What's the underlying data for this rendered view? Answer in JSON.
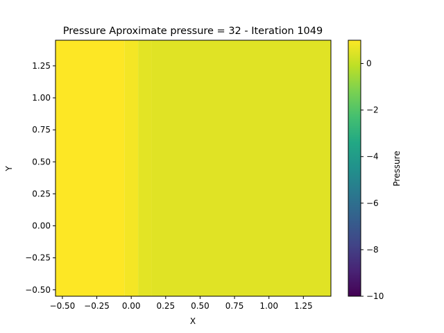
{
  "chart_data": {
    "type": "heatmap",
    "title": "Pressure Aproximate pressure = 32 - Iteration 1049",
    "xlabel": "X",
    "ylabel": "Y",
    "xlim": [
      -0.55,
      1.45
    ],
    "ylim": [
      -0.55,
      1.45
    ],
    "x_ticks": [
      -0.5,
      -0.25,
      0.0,
      0.25,
      0.5,
      0.75,
      1.0,
      1.25
    ],
    "y_ticks": [
      -0.5,
      -0.25,
      0.0,
      0.25,
      0.5,
      0.75,
      1.0,
      1.25
    ],
    "x_tick_labels": [
      "−0.50",
      "−0.25",
      "0.00",
      "0.25",
      "0.50",
      "0.75",
      "1.00",
      "1.25"
    ],
    "y_tick_labels": [
      "−0.50",
      "−0.25",
      "0.00",
      "0.25",
      "0.50",
      "0.75",
      "1.00",
      "1.25"
    ],
    "colormap": "viridis",
    "colorbar": {
      "label": "Pressure",
      "range": [
        -10,
        1
      ],
      "ticks": [
        0,
        -2,
        -4,
        -6,
        -8,
        -10
      ],
      "tick_labels": [
        "0",
        "−2",
        "−4",
        "−6",
        "−8",
        "−10"
      ]
    },
    "columns": [
      {
        "x_from": -0.55,
        "x_to": -0.05,
        "pressure": 1.0
      },
      {
        "x_from": -0.05,
        "x_to": 0.05,
        "pressure": 0.85
      },
      {
        "x_from": 0.05,
        "x_to": 0.15,
        "pressure": 0.55
      },
      {
        "x_from": 0.15,
        "x_to": 1.45,
        "pressure": 0.5
      }
    ]
  }
}
